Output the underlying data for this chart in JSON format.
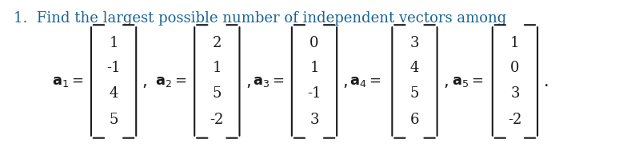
{
  "title_text": "1.  Find the largest possible number of independent vectors among",
  "title_color": "#1a6496",
  "title_fontsize": 13,
  "vectors": [
    {
      "label": "a_1",
      "values": [
        "1",
        "-1",
        "4",
        "5"
      ]
    },
    {
      "label": "a_2",
      "values": [
        "2",
        "1",
        "5",
        "-2"
      ]
    },
    {
      "label": "a_3",
      "values": [
        "0",
        "1",
        "-1",
        "3"
      ]
    },
    {
      "label": "a_4",
      "values": [
        "3",
        "4",
        "5",
        "6"
      ]
    },
    {
      "label": "a_5",
      "values": [
        "1",
        "0",
        "3",
        "-2"
      ]
    }
  ],
  "vector_color": "#1a1a1a",
  "label_color": "#1a1a1a",
  "background_color": "#ffffff",
  "font_family": "serif",
  "vector_fontsize": 13,
  "label_fontsize": 13
}
